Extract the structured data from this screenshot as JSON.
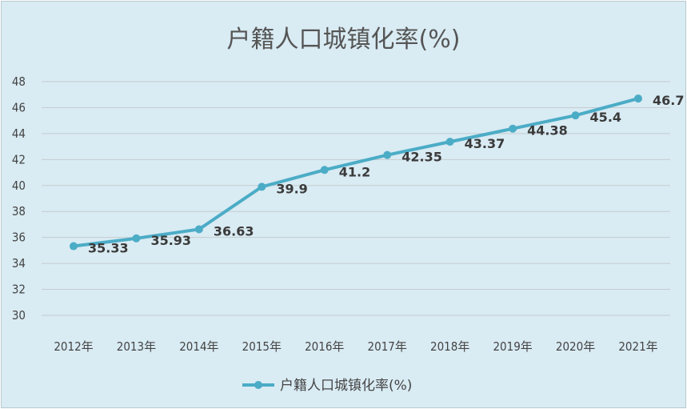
{
  "chart_data": {
    "type": "line",
    "title": "户籍人口城镇化率(%)",
    "categories": [
      "2012年",
      "2013年",
      "2014年",
      "2015年",
      "2016年",
      "2017年",
      "2018年",
      "2019年",
      "2020年",
      "2021年"
    ],
    "series": [
      {
        "name": "户籍人口城镇化率(%)",
        "values": [
          35.33,
          35.93,
          36.63,
          39.9,
          41.2,
          42.35,
          43.37,
          44.38,
          45.4,
          46.7
        ],
        "labels": [
          "35.33",
          "35.93",
          "36.63",
          "39.9",
          "41.2",
          "42.35",
          "43.37",
          "44.38",
          "45.4",
          "46.7"
        ],
        "color": "#4bacc6"
      }
    ],
    "ylim": [
      30,
      48
    ],
    "yticks": [
      "30",
      "32",
      "34",
      "36",
      "38",
      "40",
      "42",
      "44",
      "46",
      "48"
    ],
    "grid": true,
    "legend_position": "bottom"
  }
}
